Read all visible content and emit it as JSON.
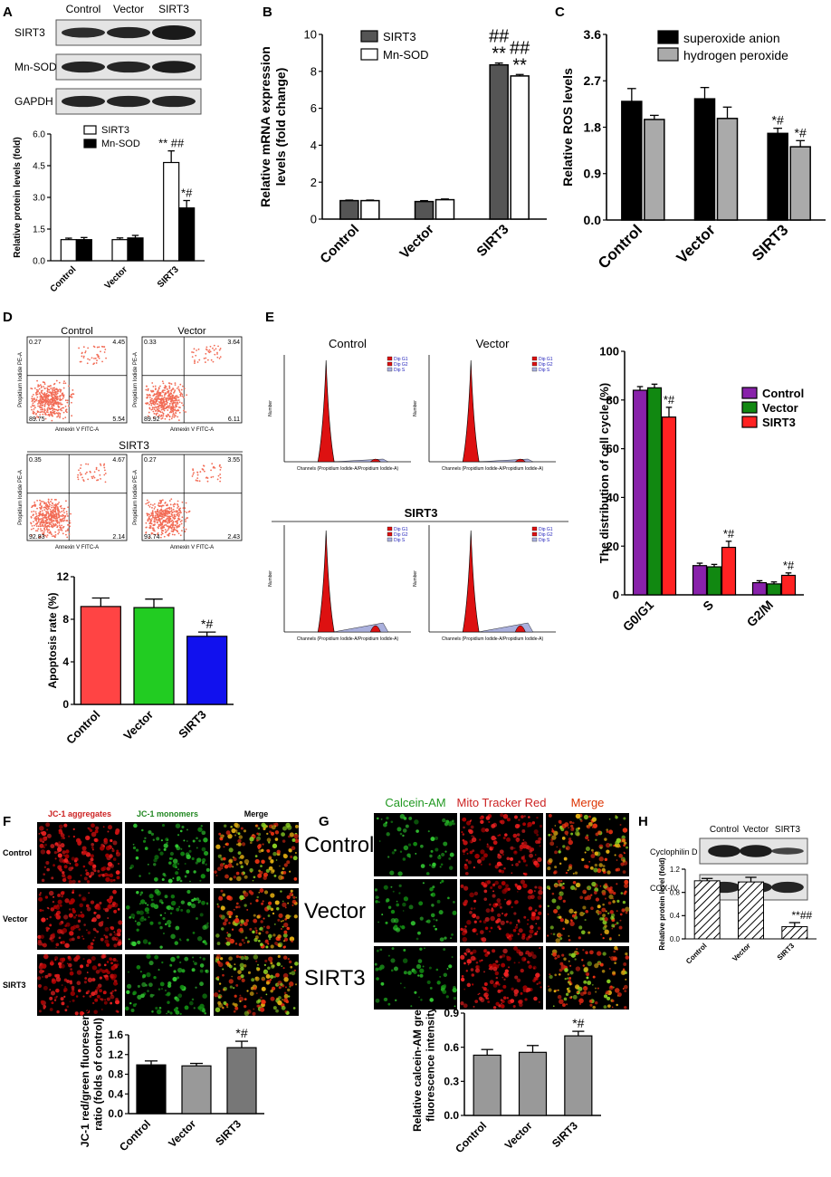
{
  "panels": {
    "A": {
      "letter": "A",
      "blot_columns": [
        "Control",
        "Vector",
        "SIRT3"
      ],
      "blot_rows": [
        "SIRT3",
        "Mn-SOD",
        "GAPDH"
      ],
      "chart_data": {
        "type": "bar",
        "ylabel": "Relative protein levels (fold)",
        "ylim": [
          0,
          6.0
        ],
        "yticks": [
          "0.0",
          "1.5",
          "3.0",
          "4.5",
          "6.0"
        ],
        "categories": [
          "Control",
          "Vector",
          "SIRT3"
        ],
        "series": [
          {
            "name": "SIRT3",
            "values": [
              1.0,
              1.0,
              4.65
            ],
            "errors": [
              0.07,
              0.08,
              0.55
            ],
            "fill": "#ffffff"
          },
          {
            "name": "Mn-SOD",
            "values": [
              1.0,
              1.08,
              2.5
            ],
            "errors": [
              0.1,
              0.12,
              0.35
            ],
            "fill": "#000000"
          }
        ],
        "annotations": [
          [
            "",
            "",
            "** ##"
          ],
          [
            "",
            "",
            "*#"
          ]
        ],
        "legend": "top-center"
      }
    },
    "B": {
      "letter": "B",
      "chart_data": {
        "type": "bar",
        "ylabel": [
          "Relative mRNA expression",
          "levels (fold change)"
        ],
        "ylim": [
          0,
          10
        ],
        "yticks": [
          "0",
          "2",
          "4",
          "6",
          "8",
          "10"
        ],
        "categories": [
          "Control",
          "Vector",
          "SIRT3"
        ],
        "series": [
          {
            "name": "SIRT3",
            "values": [
              1.0,
              0.95,
              8.35
            ],
            "errors": [
              0.03,
              0.05,
              0.1
            ],
            "fill": "#555555"
          },
          {
            "name": "Mn-SOD",
            "values": [
              1.0,
              1.05,
              7.75
            ],
            "errors": [
              0.03,
              0.04,
              0.08
            ],
            "fill": "#ffffff"
          }
        ],
        "annotations": [
          [
            "",
            "",
            "##\n**"
          ],
          [
            "",
            "",
            "##\n**"
          ]
        ],
        "legend": "top-left"
      }
    },
    "C": {
      "letter": "C",
      "chart_data": {
        "type": "bar",
        "ylabel": "Relative ROS levels",
        "ylim": [
          0,
          3.6
        ],
        "yticks": [
          "0.0",
          "0.9",
          "1.8",
          "2.7",
          "3.6"
        ],
        "categories": [
          "Control",
          "Vector",
          "SIRT3"
        ],
        "series": [
          {
            "name": "superoxide anion",
            "values": [
              2.3,
              2.35,
              1.68
            ],
            "errors": [
              0.25,
              0.22,
              0.1
            ],
            "fill": "#000000"
          },
          {
            "name": "hydrogen peroxide",
            "values": [
              1.95,
              1.97,
              1.42
            ],
            "errors": [
              0.08,
              0.22,
              0.12
            ],
            "fill": "#aaaaaa"
          }
        ],
        "annotations": [
          [
            "",
            "",
            "*#"
          ],
          [
            "",
            "",
            "*#"
          ]
        ],
        "legend": "top-right"
      }
    },
    "D": {
      "letter": "D",
      "groups": [
        "Control",
        "Vector",
        "SIRT3"
      ],
      "flow": [
        {
          "title": "Control",
          "q": [
            "0.27",
            "4.45",
            "89.75",
            "5.54"
          ]
        },
        {
          "title": "Vector",
          "q": [
            "0.33",
            "3.64",
            "89.92",
            "6.11"
          ]
        },
        {
          "title": "",
          "q": [
            "0.35",
            "4.67",
            "92.83",
            "2.14"
          ]
        },
        {
          "title": "",
          "q": [
            "0.27",
            "3.55",
            "93.74",
            "2.43"
          ]
        }
      ],
      "xaxis": "Annexin V FITC-A",
      "yaxis": "Propidium Iodide PE-A",
      "chart_data": {
        "type": "bar",
        "ylabel": "Apoptosis rate (%)",
        "ylim": [
          0,
          12
        ],
        "yticks": [
          "0",
          "4",
          "8",
          "12"
        ],
        "categories": [
          "Control",
          "Vector",
          "SIRT3"
        ],
        "series": [
          {
            "name": "",
            "values": [
              9.2,
              9.1,
              6.4
            ],
            "errors": [
              0.8,
              0.8,
              0.4
            ]
          }
        ],
        "colors": [
          "#ff4444",
          "#22cc22",
          "#1111ee"
        ],
        "annotations": [
          [
            "",
            "",
            "*#"
          ]
        ]
      }
    },
    "E": {
      "letter": "E",
      "hist": [
        {
          "title": "Control"
        },
        {
          "title": "Vector"
        },
        {
          "title": ""
        },
        {
          "title": ""
        }
      ],
      "sirt3_label": "SIRT3",
      "hist_xlabel": "Channels (Propidium Iodide-A/Propidium Iodide-A)",
      "hist_ylabel": "Number",
      "hist_legend": [
        "Dip G1",
        "Dip G2",
        "Dip S"
      ],
      "chart_data": {
        "type": "bar",
        "ylabel": "The distribution of cell cycle (%)",
        "ylim": [
          0,
          100
        ],
        "yticks": [
          "0",
          "20",
          "40",
          "60",
          "80",
          "100"
        ],
        "categories": [
          "G0/G1",
          "S",
          "G2/M"
        ],
        "series": [
          {
            "name": "Control",
            "values": [
              84,
              12,
              5
            ],
            "errors": [
              1.5,
              1,
              0.8
            ],
            "fill": "#8822aa"
          },
          {
            "name": "Vector",
            "values": [
              85,
              11.5,
              4.5
            ],
            "errors": [
              1.5,
              1,
              0.8
            ],
            "fill": "#118811"
          },
          {
            "name": "SIRT3",
            "values": [
              73,
              19.5,
              8
            ],
            "errors": [
              4,
              2.5,
              1
            ],
            "fill": "#ff2222"
          }
        ],
        "annotations": [
          [
            "",
            "",
            ""
          ],
          [
            "",
            "",
            ""
          ],
          [
            "*#",
            "*#",
            "*#"
          ]
        ],
        "legend": "top-right"
      }
    },
    "F": {
      "letter": "F",
      "cols": [
        "JC-1 aggregates",
        "JC-1 monomers",
        "Merge"
      ],
      "rows": [
        "Control",
        "Vector",
        "SIRT3"
      ],
      "chart_data": {
        "type": "bar",
        "ylabel": [
          "JC-1 red/green fluorescence",
          "ratio (folds of control)"
        ],
        "ylim": [
          0,
          1.6
        ],
        "yticks": [
          "0.0",
          "0.4",
          "0.8",
          "1.2",
          "1.6"
        ],
        "categories": [
          "Control",
          "Vector",
          "SIRT3"
        ],
        "series": [
          {
            "name": "",
            "values": [
              0.99,
              0.97,
              1.34
            ],
            "errors": [
              0.08,
              0.05,
              0.13
            ]
          }
        ],
        "colors": [
          "#000000",
          "#999999",
          "#777777"
        ],
        "annotations": [
          [
            "",
            "",
            "*#"
          ]
        ]
      }
    },
    "G": {
      "letter": "G",
      "cols": [
        "Calcein-AM",
        "Mito Tracker Red",
        "Merge"
      ],
      "rows": [
        "Control",
        "Vector",
        "SIRT3"
      ],
      "chart_data": {
        "type": "bar",
        "ylabel": [
          "Relative calcein-AM green",
          "fluorescence intensity"
        ],
        "ylim": [
          0,
          0.9
        ],
        "yticks": [
          "0.0",
          "0.3",
          "0.6",
          "0.9"
        ],
        "categories": [
          "Control",
          "Vector",
          "SIRT3"
        ],
        "series": [
          {
            "name": "",
            "values": [
              0.53,
              0.555,
              0.7
            ],
            "errors": [
              0.05,
              0.06,
              0.04
            ]
          }
        ],
        "colors": [
          "#999999",
          "#999999",
          "#999999"
        ],
        "annotations": [
          [
            "",
            "",
            "*#"
          ]
        ]
      }
    },
    "H": {
      "letter": "H",
      "blot_columns": [
        "Control",
        "Vector",
        "SIRT3"
      ],
      "blot_rows": [
        "Cyclophilin D",
        "COX-IV"
      ],
      "chart_data": {
        "type": "bar",
        "ylabel": "Relative protein level (fold)",
        "ylim": [
          0,
          1.2
        ],
        "yticks": [
          "0.0",
          "0.4",
          "0.8",
          "1.2"
        ],
        "categories": [
          "Control",
          "Vector",
          "SIRT3"
        ],
        "series": [
          {
            "name": "",
            "values": [
              1.0,
              0.98,
              0.21
            ],
            "errors": [
              0.04,
              0.08,
              0.07
            ]
          }
        ],
        "annotations": [
          [
            "",
            "",
            "**##"
          ]
        ]
      }
    }
  }
}
